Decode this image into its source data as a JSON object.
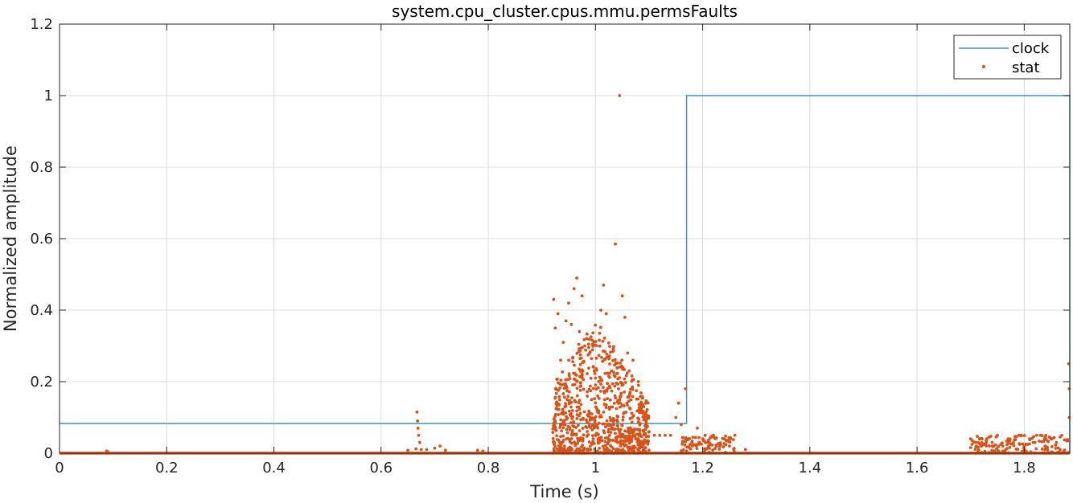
{
  "chart_data": {
    "type": "line",
    "title": "system.cpu_cluster.cpus.mmu.permsFaults",
    "xlabel": "Time (s)",
    "ylabel": "Normalized amplitude",
    "xlim": [
      0,
      1.885
    ],
    "ylim": [
      0,
      1.2
    ],
    "xticks": [
      0,
      0.2,
      0.4,
      0.6,
      0.8,
      1,
      1.2,
      1.4,
      1.6,
      1.8
    ],
    "xtick_labels": [
      "0",
      "0.2",
      "0.4",
      "0.6",
      "0.8",
      "1",
      "1.2",
      "1.4",
      "1.6",
      "1.8"
    ],
    "yticks": [
      0,
      0.2,
      0.4,
      0.6,
      0.8,
      1,
      1.2
    ],
    "ytick_labels": [
      "0",
      "0.2",
      "0.4",
      "0.6",
      "0.8",
      "1",
      "1.2"
    ],
    "grid": true,
    "legend_position": "top-right",
    "colors": {
      "clock": "#3a97b8",
      "stat": "#d95319",
      "grid": "#dcdcdc",
      "axis": "#262626"
    },
    "series": [
      {
        "name": "clock",
        "style": "line",
        "x": [
          0,
          1.17,
          1.17,
          1.885,
          1.885
        ],
        "y": [
          0.083,
          0.083,
          1.0,
          1.0,
          0
        ]
      },
      {
        "name": "stat",
        "style": "markers",
        "baseline": {
          "x": [
            0,
            1.885
          ],
          "y": 0
        },
        "points": [
          [
            0.088,
            0.006
          ],
          [
            0.09,
            0.004
          ],
          [
            0.665,
            0.012
          ],
          [
            0.667,
            0.115
          ],
          [
            0.668,
            0.09
          ],
          [
            0.669,
            0.07
          ],
          [
            0.67,
            0.05
          ],
          [
            0.672,
            0.03
          ],
          [
            0.675,
            0.01
          ],
          [
            0.65,
            0.008
          ],
          [
            0.685,
            0.01
          ],
          [
            0.7,
            0.014
          ],
          [
            0.71,
            0.02
          ],
          [
            0.72,
            0.008
          ],
          [
            0.78,
            0.008
          ],
          [
            0.79,
            0.006
          ],
          [
            0.922,
            0.43
          ],
          [
            0.925,
            0.35
          ],
          [
            0.93,
            0.39
          ],
          [
            0.935,
            0.26
          ],
          [
            0.94,
            0.31
          ],
          [
            0.945,
            0.37
          ],
          [
            0.95,
            0.42
          ],
          [
            0.955,
            0.36
          ],
          [
            0.96,
            0.46
          ],
          [
            0.965,
            0.49
          ],
          [
            0.97,
            0.34
          ],
          [
            0.975,
            0.44
          ],
          [
            0.98,
            0.3
          ],
          [
            0.99,
            0.1
          ],
          [
            1.0,
            0.21
          ],
          [
            1.01,
            0.4
          ],
          [
            1.015,
            0.47
          ],
          [
            1.02,
            0.39
          ],
          [
            1.025,
            0.27
          ],
          [
            1.03,
            0.23
          ],
          [
            1.037,
            0.585
          ],
          [
            1.045,
            1.0
          ],
          [
            1.05,
            0.44
          ],
          [
            1.055,
            0.38
          ],
          [
            1.06,
            0.28
          ],
          [
            1.07,
            0.26
          ],
          [
            1.08,
            0.2
          ],
          [
            1.09,
            0.13
          ],
          [
            1.1,
            0.06
          ],
          [
            1.11,
            0.05
          ],
          [
            1.12,
            0.05
          ],
          [
            1.13,
            0.05
          ],
          [
            1.14,
            0.05
          ],
          [
            1.15,
            0.1
          ],
          [
            1.155,
            0.14
          ],
          [
            1.16,
            0.08
          ],
          [
            1.168,
            0.18
          ],
          [
            1.17,
            0.04
          ],
          [
            1.18,
            0.03
          ],
          [
            1.19,
            0.07
          ],
          [
            1.2,
            0.04
          ],
          [
            1.21,
            0.03
          ],
          [
            1.22,
            0.05
          ],
          [
            1.24,
            0.04
          ],
          [
            1.25,
            0.02
          ],
          [
            1.26,
            0.05
          ],
          [
            1.28,
            0.01
          ],
          [
            1.7,
            0.04
          ],
          [
            1.71,
            0.03
          ],
          [
            1.72,
            0.02
          ],
          [
            1.73,
            0.04
          ],
          [
            1.74,
            0.03
          ],
          [
            1.75,
            0.05
          ],
          [
            1.76,
            0.02
          ],
          [
            1.77,
            0.04
          ],
          [
            1.78,
            0.03
          ],
          [
            1.79,
            0.05
          ],
          [
            1.8,
            0.02
          ],
          [
            1.81,
            0.04
          ],
          [
            1.82,
            0.03
          ],
          [
            1.83,
            0.05
          ],
          [
            1.84,
            0.02
          ],
          [
            1.85,
            0.04
          ],
          [
            1.86,
            0.03
          ],
          [
            1.87,
            0.05
          ],
          [
            1.883,
            0.25
          ],
          [
            1.884,
            0.18
          ],
          [
            1.884,
            0.1
          ]
        ]
      }
    ]
  }
}
